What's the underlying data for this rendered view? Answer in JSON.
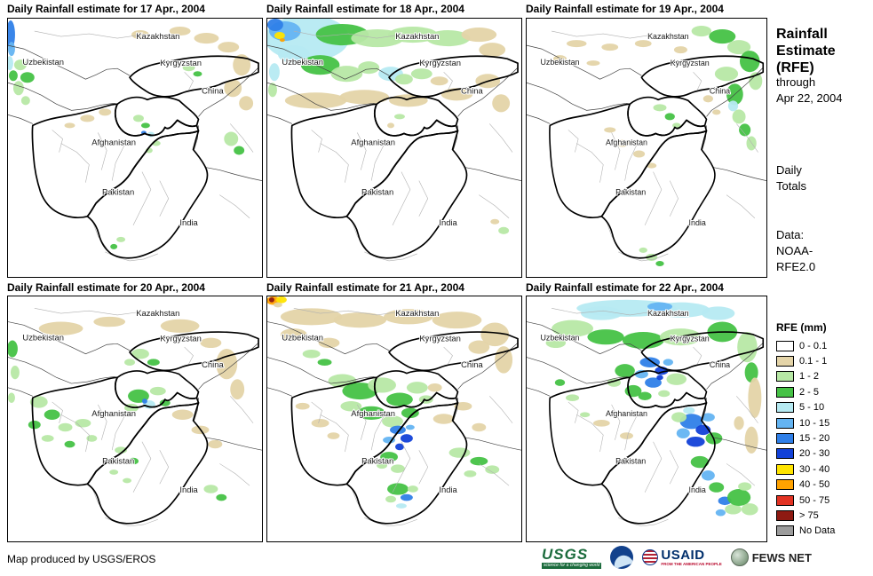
{
  "panels": [
    {
      "title": "Daily Rainfall estimate for 17 Apr., 2004"
    },
    {
      "title": "Daily Rainfall estimate for 18 Apr., 2004"
    },
    {
      "title": "Daily Rainfall estimate for 19 Apr., 2004"
    },
    {
      "title": "Daily Rainfall estimate for 20 Apr., 2004"
    },
    {
      "title": "Daily Rainfall estimate for 21 Apr., 2004"
    },
    {
      "title": "Daily Rainfall estimate for 22 Apr., 2004"
    }
  ],
  "map_labels": [
    "Kazakhstan",
    "Uzbekistan",
    "Kyrgyzstan",
    "China",
    "Afghanistan",
    "Pakistan",
    "India"
  ],
  "sidebar": {
    "title_lines": [
      "Rainfall",
      "Estimate",
      "(RFE)"
    ],
    "through_lines": [
      "through",
      "Apr 22, 2004"
    ],
    "totals_lines": [
      "Daily",
      "Totals"
    ],
    "data_lines": [
      "Data:",
      "NOAA-",
      "RFE2.0"
    ]
  },
  "legend": {
    "title": "RFE (mm)",
    "items": [
      {
        "label": "0 - 0.1",
        "color": "#FFFFFF"
      },
      {
        "label": "0.1 - 1",
        "color": "#E4D4A8"
      },
      {
        "label": "1 - 2",
        "color": "#B7E8A5"
      },
      {
        "label": "2 - 5",
        "color": "#46C246"
      },
      {
        "label": "5 - 10",
        "color": "#B6EAF2"
      },
      {
        "label": "10 - 15",
        "color": "#64B4F2"
      },
      {
        "label": "15 - 20",
        "color": "#2F7FE8"
      },
      {
        "label": "20 - 30",
        "color": "#1241D8"
      },
      {
        "label": "30 - 40",
        "color": "#FFE400"
      },
      {
        "label": "40 - 50",
        "color": "#FFA200"
      },
      {
        "label": "50 - 75",
        "color": "#E23323"
      },
      {
        "label": "> 75",
        "color": "#8E1A12"
      },
      {
        "label": "No Data",
        "color": "#9C9C9C"
      }
    ]
  },
  "footer": {
    "credit": "Map produced by USGS/EROS",
    "logos": {
      "usgs": {
        "text": "USGS",
        "tagline": "science for a changing world"
      },
      "usaid": {
        "text": "USAID",
        "tagline": "FROM THE AMERICAN PEOPLE"
      },
      "fewsnet": {
        "text": "FEWS NET"
      }
    }
  }
}
